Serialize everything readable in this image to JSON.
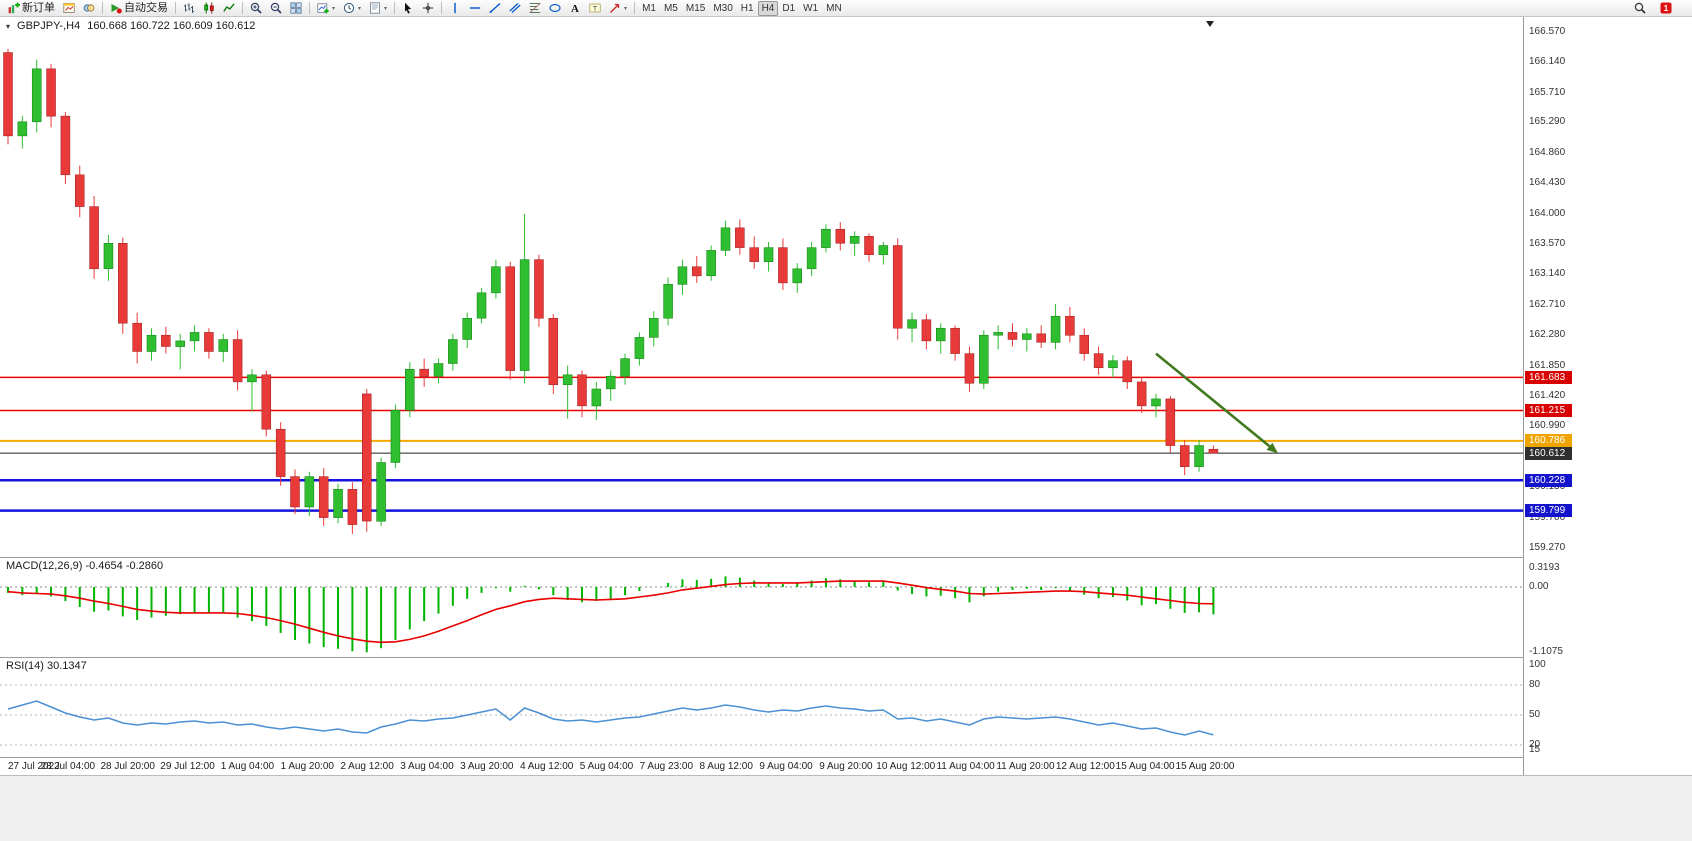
{
  "toolbar": {
    "groups": [
      {
        "items": [
          {
            "icon": "new-order",
            "label": "新订单",
            "name": "new-order-button"
          },
          {
            "icon": "chart-window",
            "name": "market-watch-button"
          },
          {
            "icon": "profiles",
            "name": "profiles-button"
          }
        ]
      },
      {
        "items": [
          {
            "icon": "auto-trading",
            "label": "自动交易",
            "name": "auto-trading-button"
          }
        ]
      },
      {
        "items": [
          {
            "icon": "bar-chart",
            "name": "bar-chart-button"
          },
          {
            "icon": "candle-chart",
            "name": "candlestick-chart-button"
          },
          {
            "icon": "line-chart",
            "name": "line-chart-button"
          }
        ]
      },
      {
        "items": [
          {
            "icon": "zoom-in",
            "name": "zoom-in-button"
          },
          {
            "icon": "zoom-out",
            "name": "zoom-out-button"
          },
          {
            "icon": "tile-windows",
            "name": "tile-windows-button"
          }
        ]
      },
      {
        "items": [
          {
            "icon": "new-chart",
            "dropdown": true,
            "name": "new-chart-button"
          },
          {
            "icon": "period",
            "dropdown": true,
            "name": "periods-button"
          },
          {
            "icon": "template",
            "dropdown": true,
            "name": "templates-button"
          }
        ]
      },
      {
        "items": [
          {
            "icon": "cursor",
            "name": "cursor-button"
          },
          {
            "icon": "crosshair",
            "name": "crosshair-button"
          }
        ]
      },
      {
        "items": [
          {
            "icon": "vline",
            "name": "vertical-line-button"
          },
          {
            "icon": "hline",
            "name": "horizontal-line-button"
          },
          {
            "icon": "trendline",
            "name": "trendline-button"
          },
          {
            "icon": "channel",
            "name": "equidistant-channel-button"
          },
          {
            "icon": "fibonacci",
            "name": "fibonacci-button"
          },
          {
            "icon": "shapes",
            "name": "shapes-button"
          },
          {
            "icon": "text",
            "name": "text-button"
          },
          {
            "icon": "text-label",
            "name": "text-label-button"
          },
          {
            "icon": "arrows",
            "dropdown": true,
            "name": "arrows-button"
          }
        ]
      },
      {
        "items": [
          {
            "text": "M1",
            "name": "timeframe-m1-button"
          },
          {
            "text": "M5",
            "name": "timeframe-m5-button"
          },
          {
            "text": "M15",
            "name": "timeframe-m15-button"
          },
          {
            "text": "M30",
            "name": "timeframe-m30-button"
          },
          {
            "text": "H1",
            "name": "timeframe-h1-button"
          },
          {
            "text": "H4",
            "active": true,
            "name": "timeframe-h4-button"
          },
          {
            "text": "D1",
            "name": "timeframe-d1-button"
          },
          {
            "text": "W1",
            "name": "timeframe-w1-button"
          },
          {
            "text": "MN",
            "name": "timeframe-mn-button"
          }
        ]
      }
    ],
    "right_items": [
      {
        "icon": "search",
        "name": "search-button"
      },
      {
        "icon": "alert",
        "name": "notification-button"
      }
    ]
  },
  "chart": {
    "symbol_period": "GBPJPY-,H4",
    "ohlc": "160.668 160.722 160.609 160.612"
  },
  "chart_data": {
    "type": "candlestick",
    "symbol": "GBPJPY-",
    "period": "H4",
    "up_color": "#2FBE2F",
    "down_color": "#E93A3A",
    "price_axis": {
      "min": 159.27,
      "max": 166.57,
      "labels": [
        "166.570",
        "166.140",
        "165.710",
        "165.290",
        "164.860",
        "164.430",
        "164.000",
        "163.570",
        "163.140",
        "162.710",
        "162.280",
        "161.850",
        "161.420",
        "160.990",
        "160.130",
        "159.700",
        "159.270"
      ]
    },
    "time_labels": [
      "27 Jul 2022",
      "28 Jul 04:00",
      "28 Jul 20:00",
      "29 Jul 12:00",
      "1 Aug 04:00",
      "1 Aug 20:00",
      "2 Aug 12:00",
      "3 Aug 04:00",
      "3 Aug 20:00",
      "4 Aug 12:00",
      "5 Aug 04:00",
      "7 Aug 23:00",
      "8 Aug 12:00",
      "9 Aug 04:00",
      "9 Aug 20:00",
      "10 Aug 12:00",
      "11 Aug 04:00",
      "11 Aug 20:00",
      "12 Aug 12:00",
      "15 Aug 04:00",
      "15 Aug 20:00"
    ],
    "candles": [
      [
        166.28,
        166.33,
        164.98,
        165.1
      ],
      [
        165.1,
        165.38,
        164.92,
        165.3
      ],
      [
        165.3,
        166.18,
        165.15,
        166.05
      ],
      [
        166.05,
        166.12,
        165.22,
        165.38
      ],
      [
        165.38,
        165.44,
        164.42,
        164.55
      ],
      [
        164.55,
        164.68,
        163.95,
        164.1
      ],
      [
        164.1,
        164.25,
        163.08,
        163.22
      ],
      [
        163.22,
        163.7,
        163.05,
        163.58
      ],
      [
        163.58,
        163.66,
        162.3,
        162.45
      ],
      [
        162.45,
        162.6,
        161.88,
        162.05
      ],
      [
        162.05,
        162.38,
        161.92,
        162.28
      ],
      [
        162.28,
        162.4,
        162.02,
        162.12
      ],
      [
        162.12,
        162.3,
        161.8,
        162.2
      ],
      [
        162.2,
        162.42,
        162.05,
        162.32
      ],
      [
        162.32,
        162.38,
        161.95,
        162.05
      ],
      [
        162.05,
        162.3,
        161.9,
        162.22
      ],
      [
        162.22,
        162.35,
        161.5,
        161.62
      ],
      [
        161.62,
        161.8,
        161.2,
        161.72
      ],
      [
        161.72,
        161.78,
        160.85,
        160.95
      ],
      [
        160.95,
        161.05,
        160.15,
        160.28
      ],
      [
        160.28,
        160.38,
        159.75,
        159.85
      ],
      [
        159.85,
        160.35,
        159.72,
        160.28
      ],
      [
        160.28,
        160.4,
        159.58,
        159.7
      ],
      [
        159.7,
        160.18,
        159.62,
        160.1
      ],
      [
        160.1,
        160.2,
        159.47,
        159.6
      ],
      [
        161.45,
        161.52,
        159.5,
        159.65
      ],
      [
        159.65,
        160.55,
        159.58,
        160.48
      ],
      [
        160.48,
        161.3,
        160.4,
        161.22
      ],
      [
        161.22,
        161.9,
        161.12,
        161.8
      ],
      [
        161.8,
        161.95,
        161.55,
        161.7
      ],
      [
        161.7,
        161.95,
        161.6,
        161.88
      ],
      [
        161.88,
        162.3,
        161.78,
        162.22
      ],
      [
        162.22,
        162.6,
        162.1,
        162.52
      ],
      [
        162.52,
        162.95,
        162.45,
        162.88
      ],
      [
        162.88,
        163.35,
        162.8,
        163.25
      ],
      [
        163.25,
        163.32,
        161.65,
        161.78
      ],
      [
        161.78,
        164.0,
        161.6,
        163.35
      ],
      [
        163.35,
        163.42,
        162.4,
        162.52
      ],
      [
        162.52,
        162.58,
        161.45,
        161.58
      ],
      [
        161.58,
        161.85,
        161.1,
        161.72
      ],
      [
        161.72,
        161.78,
        161.12,
        161.28
      ],
      [
        161.28,
        161.62,
        161.08,
        161.52
      ],
      [
        161.52,
        161.78,
        161.35,
        161.7
      ],
      [
        161.7,
        162.02,
        161.58,
        161.95
      ],
      [
        161.95,
        162.32,
        161.85,
        162.25
      ],
      [
        162.25,
        162.62,
        162.12,
        162.52
      ],
      [
        162.52,
        163.1,
        162.42,
        163.0
      ],
      [
        163.0,
        163.35,
        162.85,
        163.25
      ],
      [
        163.25,
        163.4,
        163.02,
        163.12
      ],
      [
        163.12,
        163.55,
        163.05,
        163.48
      ],
      [
        163.48,
        163.9,
        163.4,
        163.8
      ],
      [
        163.8,
        163.92,
        163.42,
        163.52
      ],
      [
        163.52,
        163.68,
        163.22,
        163.32
      ],
      [
        163.32,
        163.6,
        163.18,
        163.52
      ],
      [
        163.52,
        163.65,
        162.92,
        163.02
      ],
      [
        163.02,
        163.3,
        162.88,
        163.22
      ],
      [
        163.22,
        163.6,
        163.12,
        163.52
      ],
      [
        163.52,
        163.85,
        163.45,
        163.78
      ],
      [
        163.78,
        163.88,
        163.48,
        163.58
      ],
      [
        163.58,
        163.75,
        163.4,
        163.68
      ],
      [
        163.68,
        163.72,
        163.32,
        163.42
      ],
      [
        163.42,
        163.6,
        163.28,
        163.55
      ],
      [
        163.55,
        163.65,
        162.22,
        162.38
      ],
      [
        162.38,
        162.6,
        162.18,
        162.5
      ],
      [
        162.5,
        162.58,
        162.08,
        162.2
      ],
      [
        162.2,
        162.45,
        162.02,
        162.38
      ],
      [
        162.38,
        162.42,
        161.92,
        162.02
      ],
      [
        162.02,
        162.12,
        161.48,
        161.6
      ],
      [
        161.6,
        162.35,
        161.52,
        162.28
      ],
      [
        162.28,
        162.42,
        162.08,
        162.32
      ],
      [
        162.32,
        162.45,
        162.12,
        162.22
      ],
      [
        162.22,
        162.38,
        162.05,
        162.3
      ],
      [
        162.3,
        162.42,
        162.1,
        162.18
      ],
      [
        162.18,
        162.72,
        162.08,
        162.55
      ],
      [
        162.55,
        162.68,
        162.18,
        162.28
      ],
      [
        162.28,
        162.38,
        161.92,
        162.02
      ],
      [
        162.02,
        162.12,
        161.72,
        161.82
      ],
      [
        161.82,
        162.0,
        161.68,
        161.92
      ],
      [
        161.92,
        161.98,
        161.52,
        161.62
      ],
      [
        161.62,
        161.68,
        161.18,
        161.28
      ],
      [
        161.28,
        161.45,
        161.12,
        161.38
      ],
      [
        161.38,
        161.42,
        160.62,
        160.72
      ],
      [
        160.72,
        160.8,
        160.3,
        160.42
      ],
      [
        160.42,
        160.8,
        160.35,
        160.72
      ],
      [
        160.668,
        160.722,
        160.609,
        160.612
      ]
    ],
    "hlines": [
      {
        "price": 161.683,
        "label": "161.683",
        "color": "#E80000",
        "width": 1.5,
        "badge_bg": "#D80000"
      },
      {
        "price": 161.215,
        "label": "161.215",
        "color": "#E80000",
        "width": 1.5,
        "badge_bg": "#D80000"
      },
      {
        "price": 160.786,
        "label": "160.786",
        "color": "#F5A800",
        "width": 2,
        "badge_bg": "#F0A400"
      },
      {
        "price": 160.612,
        "label": "160.612",
        "color": "#222222",
        "width": 1,
        "badge_bg": "#2F2F2F"
      },
      {
        "price": 160.228,
        "label": "160.228",
        "color": "#1414DC",
        "width": 2.5,
        "badge_bg": "#1414CC"
      },
      {
        "price": 159.799,
        "label": "159.799",
        "color": "#1414DC",
        "width": 2.5,
        "badge_bg": "#1414CC"
      }
    ],
    "trend_arrow": {
      "from_candle": 81,
      "from_price": 162.02,
      "to_candle": 89.5,
      "to_price": 160.61,
      "color": "#3F7A1F"
    },
    "macd": {
      "label": "MACD(12,26,9) -0.4654 -0.2860",
      "params": "12,26,9",
      "value": -0.4654,
      "signal_value": -0.286,
      "scale_max": 0.3193,
      "scale_min": -1.1075,
      "axis_labels": [
        "0.3193",
        "0.00",
        "-1.1075"
      ],
      "histogram_color": "#00B400",
      "signal_color": "#E80000",
      "histogram": [
        -0.1,
        -0.14,
        -0.12,
        -0.16,
        -0.24,
        -0.34,
        -0.42,
        -0.4,
        -0.5,
        -0.56,
        -0.52,
        -0.49,
        -0.46,
        -0.44,
        -0.45,
        -0.43,
        -0.52,
        -0.58,
        -0.66,
        -0.78,
        -0.9,
        -0.96,
        -1.02,
        -1.05,
        -1.09,
        -1.11,
        -1.04,
        -0.9,
        -0.72,
        -0.58,
        -0.45,
        -0.32,
        -0.2,
        -0.1,
        -0.02,
        -0.08,
        0.02,
        -0.04,
        -0.14,
        -0.22,
        -0.26,
        -0.24,
        -0.2,
        -0.14,
        -0.07,
        0.0,
        0.07,
        0.13,
        0.12,
        0.14,
        0.18,
        0.16,
        0.11,
        0.08,
        0.05,
        0.07,
        0.11,
        0.15,
        0.13,
        0.11,
        0.08,
        0.09,
        -0.06,
        -0.12,
        -0.16,
        -0.15,
        -0.19,
        -0.26,
        -0.16,
        -0.08,
        -0.05,
        -0.03,
        -0.05,
        -0.02,
        -0.07,
        -0.13,
        -0.19,
        -0.17,
        -0.23,
        -0.31,
        -0.29,
        -0.37,
        -0.44,
        -0.43,
        -0.4654
      ],
      "signal": [
        -0.08,
        -0.1,
        -0.11,
        -0.12,
        -0.15,
        -0.19,
        -0.24,
        -0.28,
        -0.33,
        -0.38,
        -0.41,
        -0.43,
        -0.44,
        -0.44,
        -0.44,
        -0.44,
        -0.45,
        -0.48,
        -0.52,
        -0.57,
        -0.63,
        -0.7,
        -0.77,
        -0.83,
        -0.88,
        -0.92,
        -0.94,
        -0.93,
        -0.89,
        -0.83,
        -0.75,
        -0.66,
        -0.57,
        -0.47,
        -0.38,
        -0.32,
        -0.25,
        -0.21,
        -0.19,
        -0.2,
        -0.21,
        -0.22,
        -0.21,
        -0.2,
        -0.17,
        -0.14,
        -0.1,
        -0.05,
        -0.02,
        0.01,
        0.04,
        0.06,
        0.07,
        0.07,
        0.07,
        0.07,
        0.08,
        0.09,
        0.1,
        0.1,
        0.1,
        0.1,
        0.07,
        0.03,
        -0.01,
        -0.04,
        -0.07,
        -0.11,
        -0.12,
        -0.11,
        -0.1,
        -0.09,
        -0.08,
        -0.07,
        -0.07,
        -0.08,
        -0.1,
        -0.12,
        -0.14,
        -0.17,
        -0.2,
        -0.23,
        -0.26,
        -0.28,
        -0.286
      ]
    },
    "rsi": {
      "label": "RSI(14) 30.1347",
      "period": 14,
      "value": 30.1347,
      "levels": [
        80,
        50,
        20
      ],
      "axis_labels": [
        "100",
        "80",
        "50",
        "20",
        "15"
      ],
      "color": "#4A90D2",
      "values": [
        56,
        60,
        64,
        58,
        52,
        48,
        45,
        47,
        42,
        40,
        42,
        41,
        43,
        44,
        42,
        43,
        40,
        41,
        38,
        36,
        38,
        36,
        34,
        36,
        33,
        32,
        38,
        41,
        45,
        44,
        46,
        47,
        50,
        53,
        56,
        45,
        57,
        52,
        46,
        44,
        45,
        43,
        45,
        47,
        48,
        51,
        54,
        57,
        55,
        57,
        60,
        58,
        55,
        53,
        55,
        54,
        57,
        59,
        57,
        56,
        54,
        55,
        46,
        47,
        44,
        46,
        43,
        40,
        46,
        48,
        47,
        46,
        47,
        48,
        46,
        43,
        40,
        42,
        39,
        36,
        37,
        33,
        30,
        34,
        30.13
      ]
    }
  }
}
